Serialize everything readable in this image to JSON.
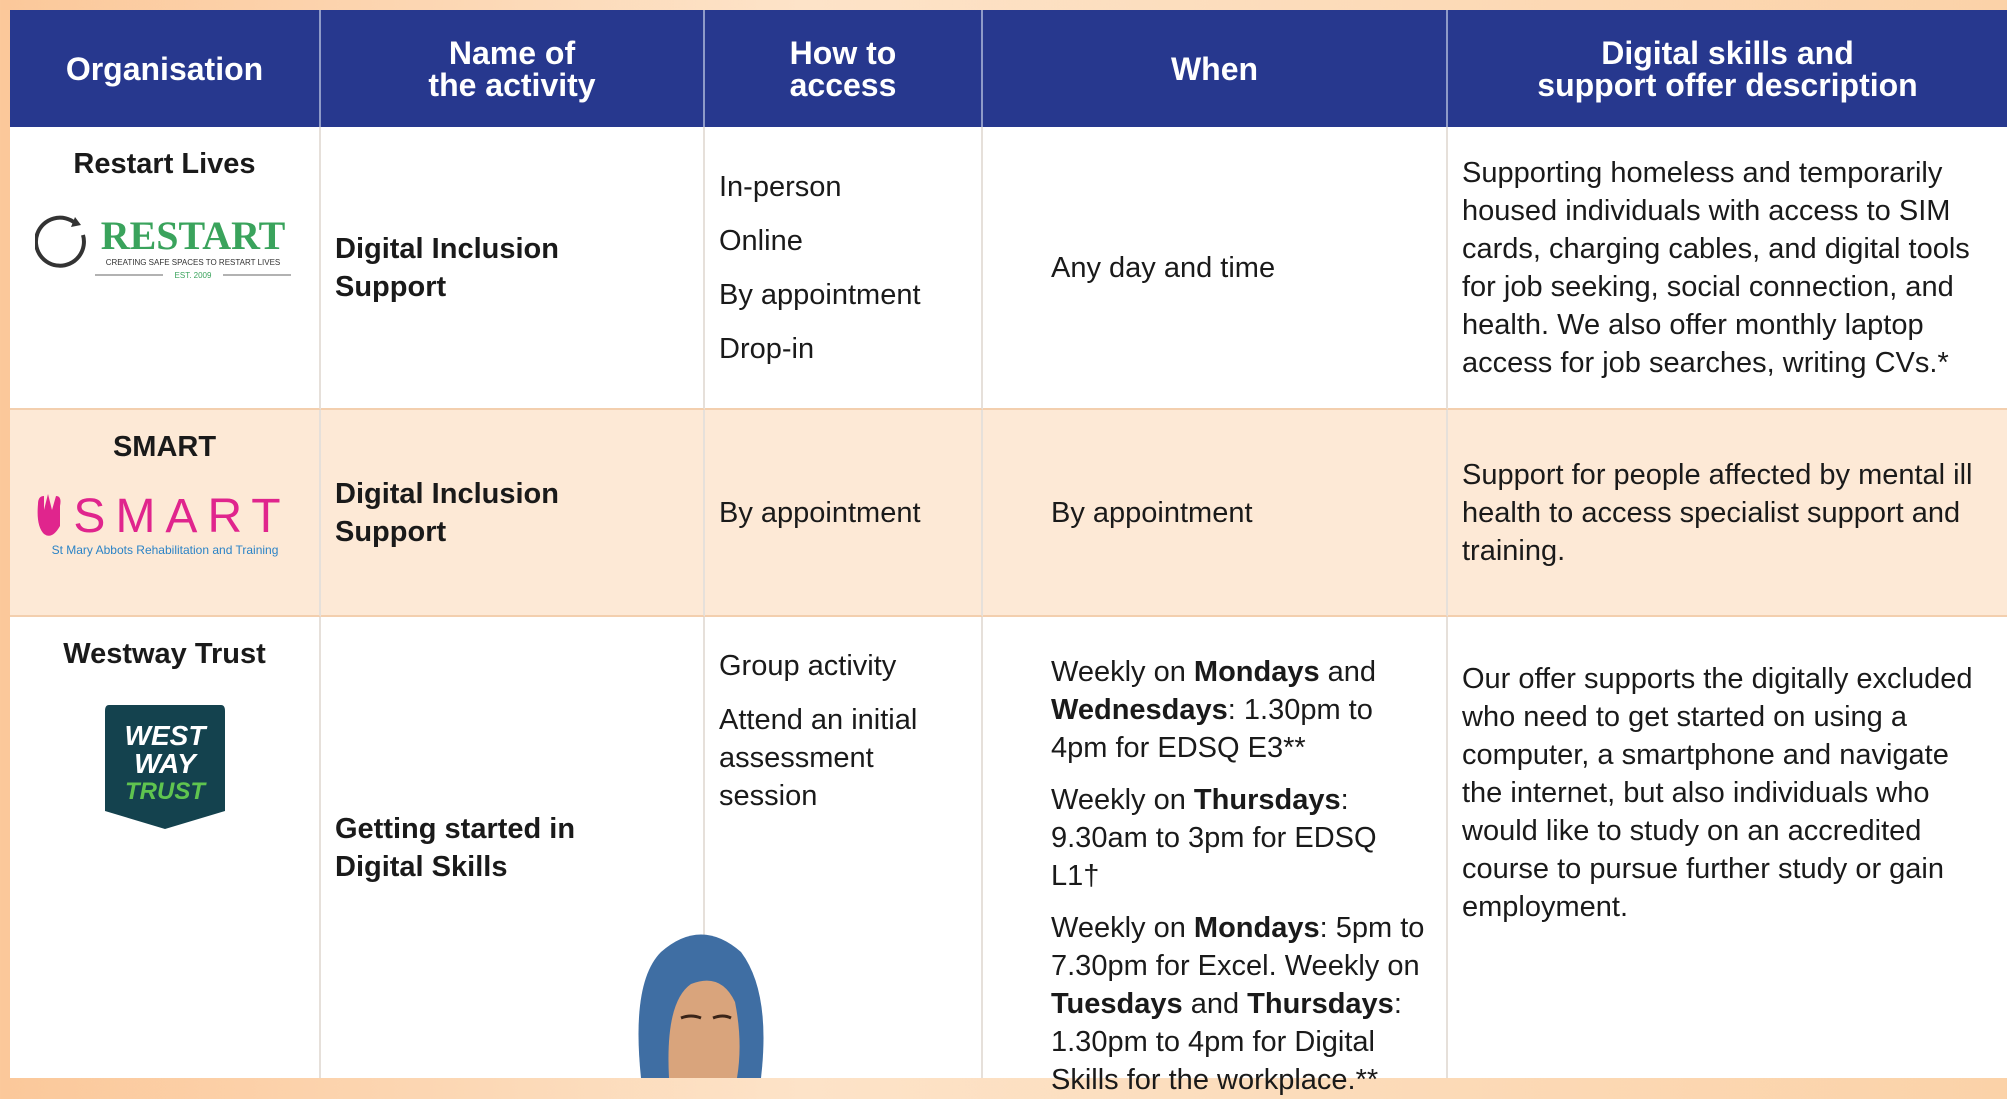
{
  "header": [
    "Organisation",
    "Name of\nthe activity",
    "How to\naccess",
    "When",
    "Digital skills and\nsupport offer description"
  ],
  "rows": [
    {
      "organisation": "Restart Lives",
      "logo": {
        "name": "RESTART",
        "tagline": "CREATING SAFE SPACES TO RESTART LIVES",
        "established": "EST. 2009"
      },
      "activity": "Digital Inclusion Support",
      "access": [
        "In-person",
        "Online",
        "By appointment",
        "Drop-in"
      ],
      "when": [
        [
          "Any day and time"
        ]
      ],
      "description": "Supporting homeless and temporarily housed individuals with access to SIM cards, charging cables, and digital tools for job seeking, social connection, and health. We also offer monthly laptop access for job searches, writing CVs.*"
    },
    {
      "organisation": "SMART",
      "logo": {
        "name": "SMART",
        "tagline": "St Mary Abbots Rehabilitation and Training"
      },
      "activity": "Digital Inclusion Support",
      "access": [
        "By appointment"
      ],
      "when": [
        [
          "By appointment"
        ]
      ],
      "description": "Support for people affected by mental ill health to access specialist support and training."
    },
    {
      "organisation": "Westway Trust",
      "logo": {
        "name": [
          "WEST",
          "WAY",
          "TRUST"
        ]
      },
      "activity": "Getting started in Digital Skills",
      "access": [
        "Group activity",
        "Attend an initial assessment session"
      ],
      "when": [
        [
          "Weekly on ",
          "Mondays",
          " and ",
          "Wednesdays",
          ": 1.30pm to 4pm for EDSQ E3**"
        ],
        [
          "Weekly on ",
          "Thursdays",
          ": 9.30am to 3pm for EDSQ L1†"
        ],
        [
          "Weekly on ",
          "Mondays",
          ": 5pm to 7.30pm for Excel. Weekly on ",
          "Tuesdays",
          " and ",
          "Thursdays",
          ": 1.30pm to 4pm for Digital Skills for the workplace.**"
        ]
      ],
      "description": "Our offer supports the digitally excluded who need to get started on using a computer, a smartphone and navigate the internet, but also individuals who would like to study on an accredited course to pursue further study or gain employment."
    }
  ]
}
